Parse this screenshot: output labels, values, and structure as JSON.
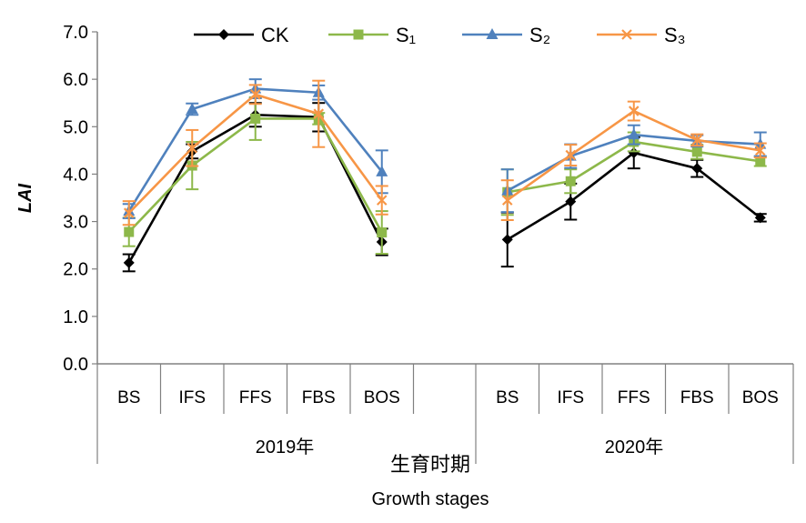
{
  "chart_data": {
    "type": "line",
    "ylabel": "LAI",
    "xlabel_cn": "生育时期",
    "xlabel_en": "Growth stages",
    "ylim": [
      0,
      7
    ],
    "yticks": [
      "0.0",
      "1.0",
      "2.0",
      "3.0",
      "4.0",
      "5.0",
      "6.0",
      "7.0"
    ],
    "grid": false,
    "legend_position": "top",
    "groups": [
      {
        "label": "2019年",
        "categories": [
          "BS",
          "IFS",
          "FFS",
          "FBS",
          "BOS",
          ""
        ]
      },
      {
        "label": "2020年",
        "categories": [
          "BS",
          "IFS",
          "FFS",
          "FBS",
          "BOS"
        ]
      }
    ],
    "series": [
      {
        "name": "CK",
        "color": "#000000",
        "marker": "diamond",
        "values_2019": [
          2.13,
          4.48,
          5.25,
          5.2,
          2.57
        ],
        "errors_2019": [
          0.18,
          0.15,
          0.25,
          0.3,
          0.28
        ],
        "values_2020": [
          2.62,
          3.42,
          4.45,
          4.12,
          3.08
        ],
        "errors_2020": [
          0.57,
          0.38,
          0.33,
          0.18,
          0.08
        ]
      },
      {
        "name": "S₁",
        "color": "#8DB84A",
        "marker": "square",
        "values_2019": [
          2.78,
          4.18,
          5.17,
          5.17,
          2.77
        ],
        "errors_2019": [
          0.3,
          0.5,
          0.45,
          0.12,
          0.45
        ],
        "values_2020": [
          3.62,
          3.85,
          4.68,
          4.47,
          4.27
        ],
        "errors_2020": [
          0.48,
          0.25,
          0.2,
          0.15,
          0.1
        ]
      },
      {
        "name": "S₂",
        "color": "#4F81BD",
        "marker": "triangle",
        "values_2019": [
          3.22,
          5.37,
          5.8,
          5.72,
          4.05
        ],
        "errors_2019": [
          0.15,
          0.12,
          0.2,
          0.15,
          0.45
        ],
        "values_2020": [
          3.65,
          4.38,
          4.83,
          4.7,
          4.63
        ],
        "errors_2020": [
          0.45,
          0.25,
          0.2,
          0.12,
          0.25
        ]
      },
      {
        "name": "S₃",
        "color": "#F79646",
        "marker": "cross",
        "values_2019": [
          3.18,
          4.55,
          5.68,
          5.27,
          3.45
        ],
        "errors_2019": [
          0.25,
          0.38,
          0.2,
          0.7,
          0.3
        ],
        "values_2020": [
          3.45,
          4.4,
          5.33,
          4.72,
          4.5
        ],
        "errors_2020": [
          0.42,
          0.22,
          0.2,
          0.12,
          0.15
        ]
      }
    ]
  }
}
